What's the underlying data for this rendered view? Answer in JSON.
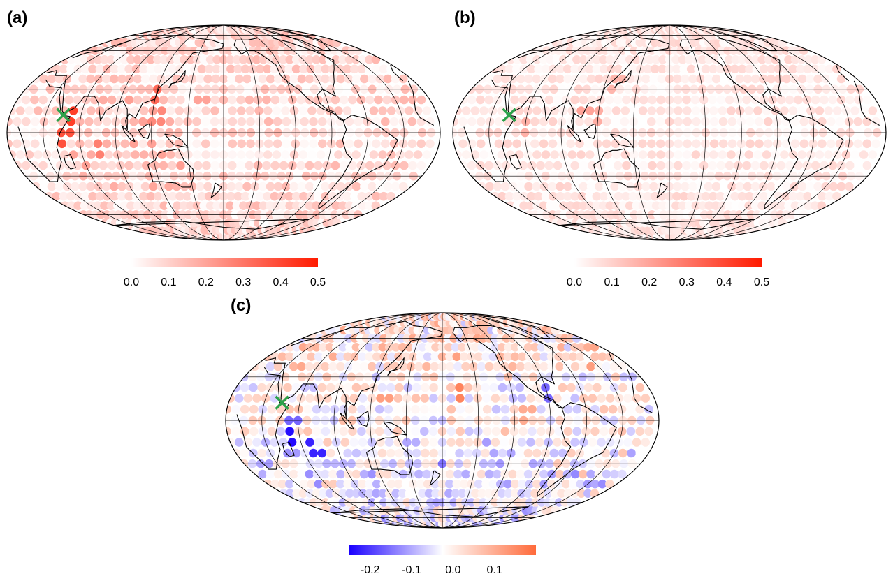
{
  "panels": [
    {
      "label": "(a)",
      "colorbar": {
        "min": 0.0,
        "max": 0.5,
        "colors": [
          "#ffffff",
          "#ff1a00"
        ],
        "ticks": [
          {
            "v": 0.0,
            "t": "0.0"
          },
          {
            "v": 0.1,
            "t": "0.1"
          },
          {
            "v": 0.2,
            "t": "0.2"
          },
          {
            "v": 0.3,
            "t": "0.3"
          },
          {
            "v": 0.4,
            "t": "0.4"
          },
          {
            "v": 0.5,
            "t": "0.5"
          }
        ]
      }
    },
    {
      "label": "(b)",
      "colorbar": {
        "min": 0.0,
        "max": 0.5,
        "colors": [
          "#ffffff",
          "#ff1a00"
        ],
        "ticks": [
          {
            "v": 0.0,
            "t": "0.0"
          },
          {
            "v": 0.1,
            "t": "0.1"
          },
          {
            "v": 0.2,
            "t": "0.2"
          },
          {
            "v": 0.3,
            "t": "0.3"
          },
          {
            "v": 0.4,
            "t": "0.4"
          },
          {
            "v": 0.5,
            "t": "0.5"
          }
        ]
      }
    },
    {
      "label": "(c)",
      "colorbar": {
        "min": -0.25,
        "max": 0.2,
        "colors": [
          "#1a00ff",
          "#ffffff",
          "#ff6a3a"
        ],
        "ticks": [
          {
            "v": -0.2,
            "t": "-0.2"
          },
          {
            "v": -0.1,
            "t": "-0.1"
          },
          {
            "v": 0.0,
            "t": "0.0"
          },
          {
            "v": 0.1,
            "t": "0.1"
          }
        ]
      }
    }
  ],
  "chart_data": [
    {
      "type": "heatmap",
      "projection": "mollweide",
      "central_lon": 180,
      "marker": {
        "symbol": "x",
        "color": "#2ca24a",
        "lon": 45,
        "lat": 12
      },
      "data": [
        {
          "lon": 52,
          "lat": 10,
          "v": 0.42
        },
        {
          "lon": 48,
          "lat": -3,
          "v": 0.38
        },
        {
          "lon": 118,
          "lat": 25,
          "v": 0.33
        },
        {
          "lon": 160,
          "lat": 22,
          "v": 0.2
        },
        {
          "lon": 75,
          "lat": -10,
          "v": 0.28
        },
        {
          "lon": 125,
          "lat": 10,
          "v": 0.26
        }
      ]
    },
    {
      "type": "heatmap",
      "projection": "mollweide",
      "central_lon": 180,
      "marker": {
        "symbol": "x",
        "color": "#2ca24a",
        "lon": 45,
        "lat": 12
      },
      "data": [
        {
          "lon": 110,
          "lat": 15,
          "v": 0.2
        },
        {
          "lon": 120,
          "lat": 10,
          "v": 0.18
        },
        {
          "lon": 60,
          "lat": 5,
          "v": 0.17
        },
        {
          "lon": 130,
          "lat": 35,
          "v": 0.16
        }
      ]
    },
    {
      "type": "heatmap",
      "projection": "mollweide",
      "central_lon": 180,
      "marker": {
        "symbol": "x",
        "color": "#2ca24a",
        "lon": 45,
        "lat": 12
      },
      "data": [
        {
          "lon": 53,
          "lat": -12,
          "v": -0.24
        },
        {
          "lon": 70,
          "lat": -20,
          "v": -0.22
        },
        {
          "lon": 56,
          "lat": 2,
          "v": -0.16
        },
        {
          "lon": 180,
          "lat": -30,
          "v": -0.15
        },
        {
          "lon": 270,
          "lat": 20,
          "v": -0.16
        },
        {
          "lon": 195,
          "lat": 20,
          "v": 0.16
        },
        {
          "lon": 130,
          "lat": 15,
          "v": 0.12
        },
        {
          "lon": 250,
          "lat": 5,
          "v": 0.1
        }
      ]
    }
  ]
}
